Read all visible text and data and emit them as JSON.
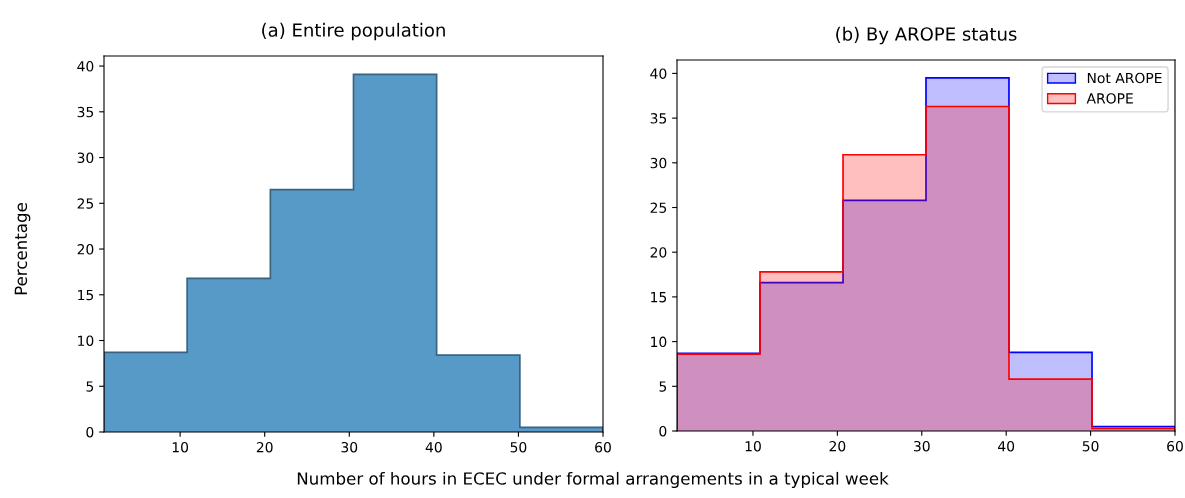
{
  "chart_data": [
    {
      "type": "histogram",
      "title": "(a) Entire population",
      "xlabel": "Number of hours in ECEC under formal arrangements in a typical week",
      "ylabel": "Percentage",
      "bins": [
        1,
        10.83,
        20.67,
        30.5,
        40.33,
        50.17,
        60
      ],
      "values": [
        8.7,
        16.8,
        26.5,
        39.1,
        8.4,
        0.5
      ],
      "color": "#5799c7",
      "xlim": [
        1,
        60
      ],
      "xticks": [
        10,
        20,
        30,
        40,
        50,
        60
      ],
      "ylim": [
        0,
        41.1
      ],
      "yticks": [
        0,
        5,
        10,
        15,
        20,
        25,
        30,
        35,
        40
      ],
      "grid": false,
      "legend": false
    },
    {
      "type": "histogram",
      "title": "(b) By AROPE status",
      "bins": [
        1,
        10.83,
        20.67,
        30.5,
        40.33,
        50.17,
        60
      ],
      "series": [
        {
          "name": "Not AROPE",
          "color": "#0000ff",
          "values": [
            8.7,
            16.6,
            25.8,
            39.5,
            8.8,
            0.5
          ]
        },
        {
          "name": "AROPE",
          "color": "#ff0000",
          "values": [
            8.6,
            17.8,
            30.9,
            36.3,
            5.8,
            0.3
          ]
        }
      ],
      "xlim": [
        1,
        60
      ],
      "xticks": [
        10,
        20,
        30,
        40,
        50,
        60
      ],
      "ylim": [
        0,
        41.5
      ],
      "yticks": [
        0,
        5,
        10,
        15,
        20,
        25,
        30,
        35,
        40
      ],
      "grid": false,
      "legend": "top right"
    }
  ]
}
